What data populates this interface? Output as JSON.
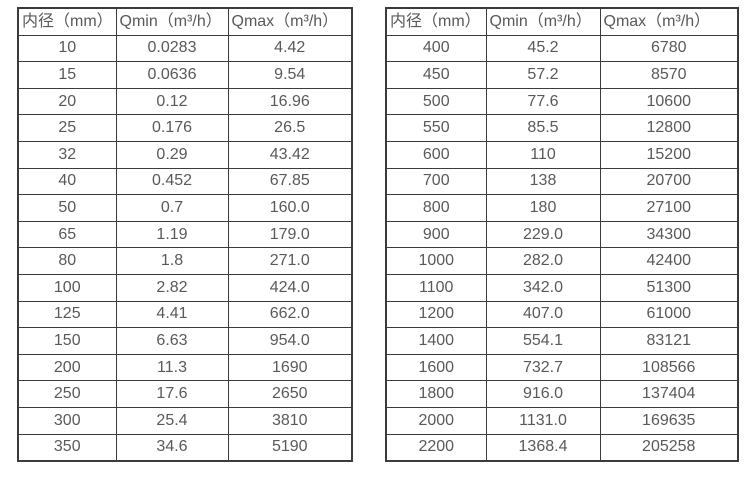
{
  "colors": {
    "border": "#3b3b3b",
    "text": "#595959",
    "background": "#ffffff"
  },
  "tables": [
    {
      "name": "flow-rate-table-small-diameters",
      "columns": [
        "内径（mm）",
        "Qmin（m³/h）",
        "Qmax（m³/h）"
      ],
      "rows": [
        [
          "10",
          "0.0283",
          "4.42"
        ],
        [
          "15",
          "0.0636",
          "9.54"
        ],
        [
          "20",
          "0.12",
          "16.96"
        ],
        [
          "25",
          "0.176",
          "26.5"
        ],
        [
          "32",
          "0.29",
          "43.42"
        ],
        [
          "40",
          "0.452",
          "67.85"
        ],
        [
          "50",
          "0.7",
          "160.0"
        ],
        [
          "65",
          "1.19",
          "179.0"
        ],
        [
          "80",
          "1.8",
          "271.0"
        ],
        [
          "100",
          "2.82",
          "424.0"
        ],
        [
          "125",
          "4.41",
          "662.0"
        ],
        [
          "150",
          "6.63",
          "954.0"
        ],
        [
          "200",
          "11.3",
          "1690"
        ],
        [
          "250",
          "17.6",
          "2650"
        ],
        [
          "300",
          "25.4",
          "3810"
        ],
        [
          "350",
          "34.6",
          "5190"
        ]
      ]
    },
    {
      "name": "flow-rate-table-large-diameters",
      "columns": [
        "内径（mm）",
        "Qmin（m³/h）",
        "Qmax（m³/h）"
      ],
      "rows": [
        [
          "400",
          "45.2",
          "6780"
        ],
        [
          "450",
          "57.2",
          "8570"
        ],
        [
          "500",
          "77.6",
          "10600"
        ],
        [
          "550",
          "85.5",
          "12800"
        ],
        [
          "600",
          "110",
          "15200"
        ],
        [
          "700",
          "138",
          "20700"
        ],
        [
          "800",
          "180",
          "27100"
        ],
        [
          "900",
          "229.0",
          "34300"
        ],
        [
          "1000",
          "282.0",
          "42400"
        ],
        [
          "1100",
          "342.0",
          "51300"
        ],
        [
          "1200",
          "407.0",
          "61000"
        ],
        [
          "1400",
          "554.1",
          "83121"
        ],
        [
          "1600",
          "732.7",
          "108566"
        ],
        [
          "1800",
          "916.0",
          "137404"
        ],
        [
          "2000",
          "1131.0",
          "169635"
        ],
        [
          "2200",
          "1368.4",
          "205258"
        ]
      ]
    }
  ]
}
